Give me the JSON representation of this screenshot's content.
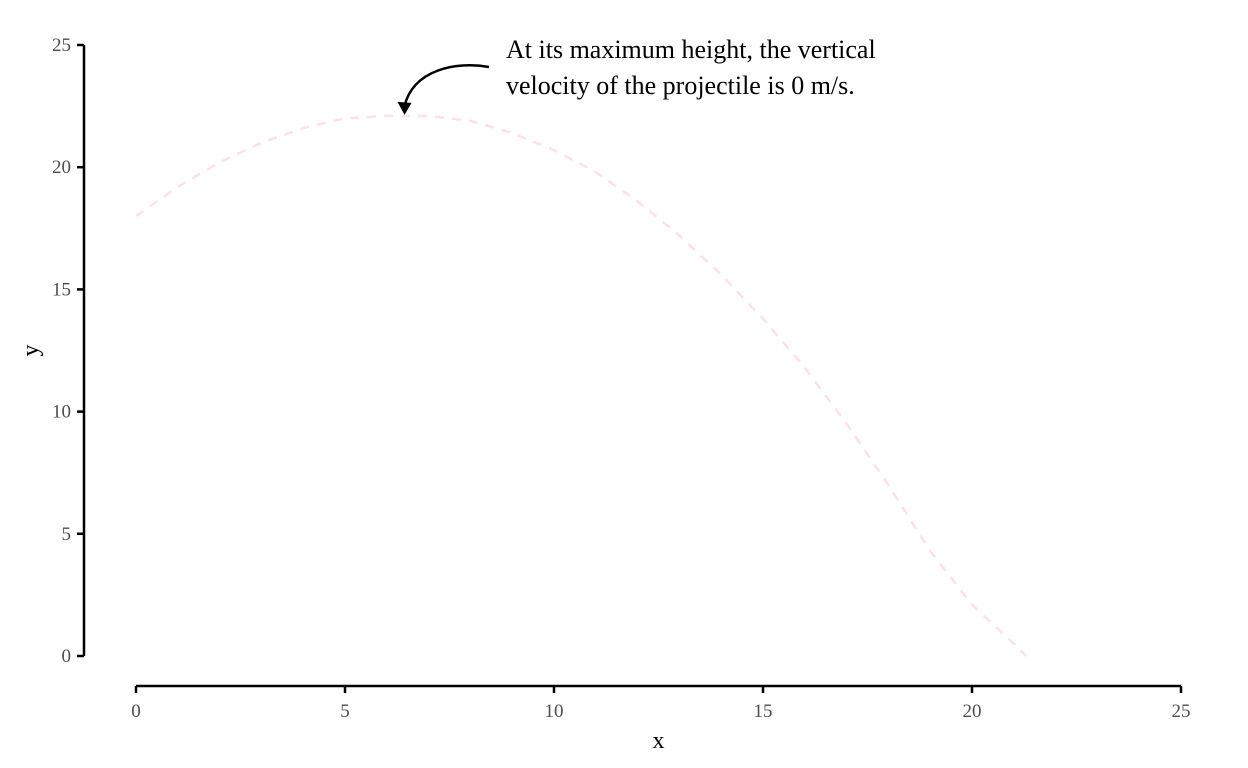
{
  "chart_data": {
    "type": "line",
    "title": "",
    "xlabel": "x",
    "ylabel": "y",
    "xlim": [
      0,
      25
    ],
    "ylim": [
      0,
      25
    ],
    "x_ticks": [
      0,
      5,
      10,
      15,
      20,
      25
    ],
    "y_ticks": [
      0,
      5,
      10,
      15,
      20,
      25
    ],
    "grid": false,
    "series": [
      {
        "color": "#ffe0e6",
        "line_style": "dashed",
        "x": [
          0,
          1,
          2,
          3,
          4,
          5,
          6,
          6.4,
          7,
          8,
          9,
          10,
          11,
          12,
          13,
          14,
          15,
          16,
          17,
          18,
          19,
          20,
          21,
          21.3
        ],
        "y": [
          18.0,
          19.2,
          20.2,
          21.0,
          21.6,
          22.0,
          22.1,
          22.1,
          22.1,
          21.9,
          21.4,
          20.7,
          19.8,
          18.6,
          17.2,
          15.6,
          13.8,
          11.8,
          9.5,
          7.0,
          4.3,
          2.1,
          0.5,
          0.0
        ]
      }
    ],
    "annotations": [
      {
        "text_lines": [
          "At its maximum height, the vertical",
          "velocity of the projectile is 0 m/s."
        ],
        "target": {
          "x": 6.4,
          "y": 22.1
        }
      }
    ]
  }
}
